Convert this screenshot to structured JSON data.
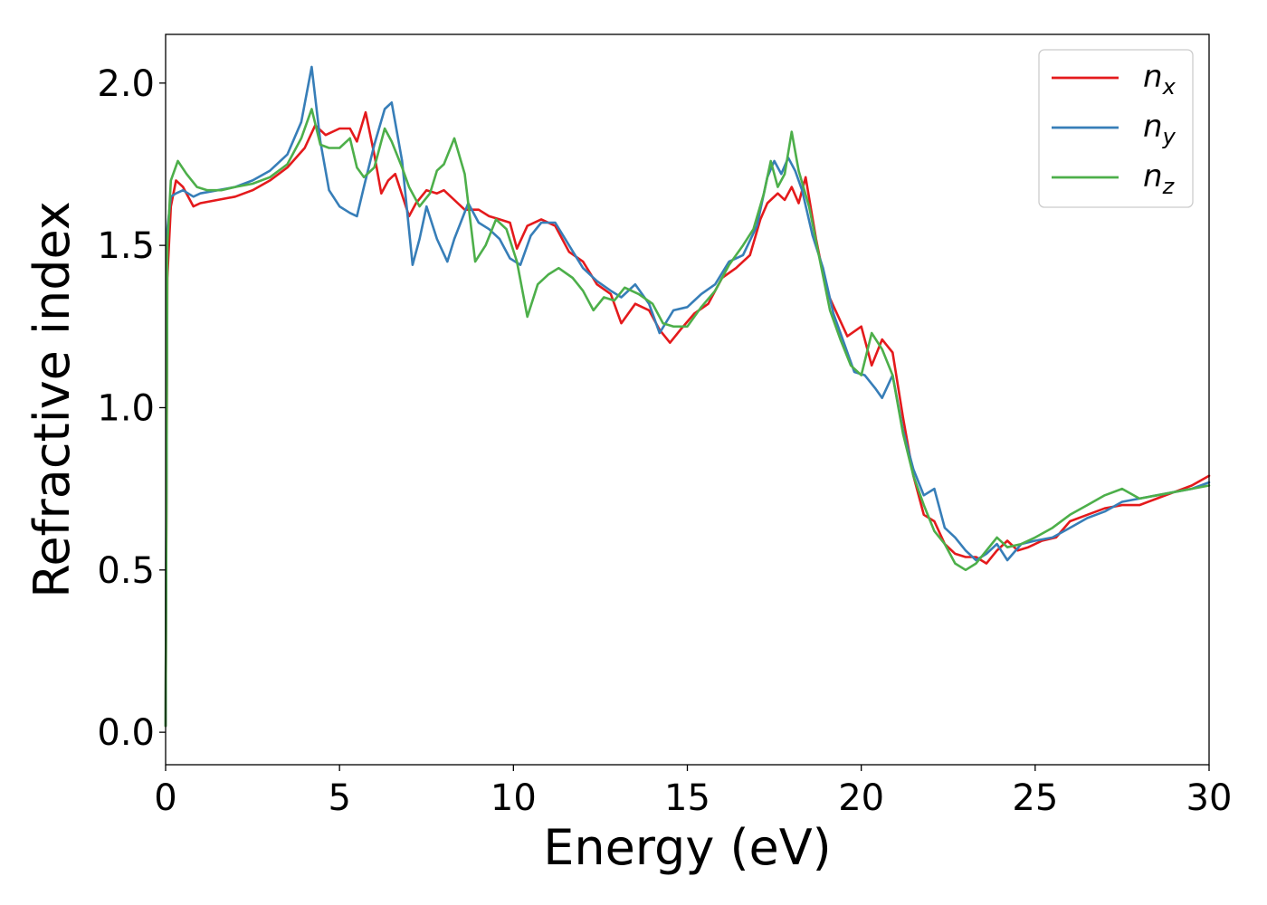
{
  "chart_data": {
    "type": "line",
    "title": "",
    "xlabel": "Energy (eV)",
    "ylabel": "Refractive index",
    "xlim": [
      0,
      30
    ],
    "ylim": [
      -0.1,
      2.15
    ],
    "xticks": [
      0,
      5,
      10,
      15,
      20,
      25,
      30
    ],
    "xtick_labels": [
      "0",
      "5",
      "10",
      "15",
      "20",
      "25",
      "30"
    ],
    "yticks": [
      0.0,
      0.5,
      1.0,
      1.5,
      2.0
    ],
    "ytick_labels": [
      "0.0",
      "0.5",
      "1.0",
      "1.5",
      "2.0"
    ],
    "grid": false,
    "legend_position": "top-right",
    "series": [
      {
        "name": "n",
        "subscript": "x",
        "color": "#e41a1c",
        "x": [
          0,
          0.05,
          0.15,
          0.3,
          0.5,
          0.8,
          1.0,
          1.5,
          2.0,
          2.5,
          3.0,
          3.5,
          4.0,
          4.3,
          4.6,
          5.0,
          5.3,
          5.5,
          5.75,
          6.0,
          6.2,
          6.4,
          6.6,
          7.0,
          7.2,
          7.5,
          7.8,
          8.0,
          8.3,
          8.6,
          9.0,
          9.3,
          9.6,
          9.9,
          10.1,
          10.4,
          10.8,
          11.2,
          11.6,
          12.0,
          12.4,
          12.8,
          13.1,
          13.5,
          13.9,
          14.2,
          14.5,
          14.8,
          15.2,
          15.6,
          16.0,
          16.4,
          16.8,
          17.1,
          17.3,
          17.6,
          17.8,
          18.0,
          18.2,
          18.4,
          18.7,
          19.0,
          19.3,
          19.6,
          20.0,
          20.3,
          20.6,
          20.9,
          21.2,
          21.5,
          21.8,
          22.1,
          22.4,
          22.7,
          23.0,
          23.3,
          23.6,
          23.9,
          24.2,
          24.5,
          24.8,
          25.2,
          25.6,
          26.0,
          26.5,
          27.0,
          27.5,
          28.0,
          28.5,
          29.0,
          29.5,
          30.0
        ],
        "y": [
          0.02,
          1.4,
          1.62,
          1.7,
          1.68,
          1.62,
          1.63,
          1.64,
          1.65,
          1.67,
          1.7,
          1.74,
          1.8,
          1.87,
          1.84,
          1.86,
          1.86,
          1.82,
          1.91,
          1.78,
          1.66,
          1.7,
          1.72,
          1.59,
          1.63,
          1.67,
          1.66,
          1.67,
          1.64,
          1.61,
          1.61,
          1.59,
          1.58,
          1.57,
          1.49,
          1.56,
          1.58,
          1.56,
          1.48,
          1.45,
          1.38,
          1.35,
          1.26,
          1.32,
          1.3,
          1.24,
          1.2,
          1.24,
          1.29,
          1.32,
          1.4,
          1.43,
          1.47,
          1.58,
          1.63,
          1.66,
          1.64,
          1.68,
          1.63,
          1.71,
          1.52,
          1.36,
          1.29,
          1.22,
          1.25,
          1.13,
          1.21,
          1.17,
          0.97,
          0.79,
          0.67,
          0.65,
          0.58,
          0.55,
          0.54,
          0.54,
          0.52,
          0.56,
          0.59,
          0.56,
          0.57,
          0.59,
          0.6,
          0.65,
          0.67,
          0.69,
          0.7,
          0.7,
          0.72,
          0.74,
          0.76,
          0.79
        ]
      },
      {
        "name": "n",
        "subscript": "y",
        "color": "#377eb8",
        "x": [
          0,
          0.05,
          0.15,
          0.3,
          0.5,
          0.8,
          1.0,
          1.5,
          2.0,
          2.5,
          3.0,
          3.5,
          3.9,
          4.2,
          4.45,
          4.7,
          5.0,
          5.3,
          5.5,
          5.7,
          6.0,
          6.3,
          6.5,
          6.8,
          7.1,
          7.3,
          7.5,
          7.8,
          8.1,
          8.3,
          8.7,
          9.0,
          9.3,
          9.6,
          9.9,
          10.2,
          10.5,
          10.8,
          11.2,
          11.6,
          12.0,
          12.4,
          12.8,
          13.1,
          13.5,
          13.9,
          14.2,
          14.6,
          15.0,
          15.4,
          15.8,
          16.2,
          16.6,
          17.0,
          17.3,
          17.5,
          17.7,
          17.9,
          18.1,
          18.3,
          18.6,
          18.9,
          19.2,
          19.5,
          19.8,
          20.1,
          20.4,
          20.6,
          20.9,
          21.2,
          21.5,
          21.8,
          22.1,
          22.4,
          22.7,
          23.0,
          23.3,
          23.6,
          23.9,
          24.2,
          24.6,
          25.0,
          25.5,
          26.0,
          26.5,
          27.0,
          27.5,
          28.0,
          28.5,
          29.0,
          29.5,
          30.0
        ],
        "y": [
          0.02,
          1.55,
          1.65,
          1.66,
          1.67,
          1.65,
          1.66,
          1.67,
          1.68,
          1.7,
          1.73,
          1.78,
          1.88,
          2.05,
          1.82,
          1.67,
          1.62,
          1.6,
          1.59,
          1.68,
          1.81,
          1.92,
          1.94,
          1.76,
          1.44,
          1.52,
          1.62,
          1.52,
          1.45,
          1.52,
          1.63,
          1.57,
          1.55,
          1.52,
          1.46,
          1.44,
          1.53,
          1.57,
          1.57,
          1.5,
          1.43,
          1.39,
          1.36,
          1.34,
          1.38,
          1.32,
          1.23,
          1.3,
          1.31,
          1.35,
          1.38,
          1.45,
          1.47,
          1.56,
          1.71,
          1.76,
          1.72,
          1.77,
          1.73,
          1.67,
          1.53,
          1.43,
          1.29,
          1.2,
          1.11,
          1.1,
          1.06,
          1.03,
          1.1,
          0.93,
          0.81,
          0.73,
          0.75,
          0.63,
          0.6,
          0.56,
          0.53,
          0.55,
          0.58,
          0.53,
          0.58,
          0.59,
          0.6,
          0.63,
          0.66,
          0.68,
          0.71,
          0.72,
          0.73,
          0.74,
          0.75,
          0.77
        ]
      },
      {
        "name": "n",
        "subscript": "z",
        "color": "#4daf4a",
        "x": [
          0,
          0.05,
          0.15,
          0.35,
          0.6,
          0.9,
          1.2,
          1.6,
          2.0,
          2.5,
          3.0,
          3.5,
          3.9,
          4.2,
          4.45,
          4.7,
          5.0,
          5.3,
          5.5,
          5.7,
          6.0,
          6.3,
          6.5,
          6.8,
          7.0,
          7.3,
          7.6,
          7.8,
          8.0,
          8.3,
          8.6,
          8.9,
          9.2,
          9.5,
          9.8,
          10.1,
          10.4,
          10.7,
          11.0,
          11.3,
          11.7,
          12.0,
          12.3,
          12.6,
          12.9,
          13.2,
          13.6,
          14.0,
          14.3,
          14.6,
          15.0,
          15.4,
          15.8,
          16.2,
          16.6,
          16.9,
          17.2,
          17.4,
          17.6,
          17.8,
          18.0,
          18.2,
          18.5,
          18.8,
          19.1,
          19.4,
          19.7,
          20.0,
          20.3,
          20.6,
          20.9,
          21.2,
          21.5,
          21.8,
          22.1,
          22.4,
          22.7,
          23.0,
          23.3,
          23.6,
          23.9,
          24.2,
          24.6,
          25.0,
          25.5,
          26.0,
          26.5,
          27.0,
          27.5,
          28.0,
          28.5,
          29.0,
          29.5,
          30.0
        ],
        "y": [
          0.02,
          1.5,
          1.7,
          1.76,
          1.72,
          1.68,
          1.67,
          1.67,
          1.68,
          1.69,
          1.71,
          1.75,
          1.83,
          1.92,
          1.81,
          1.8,
          1.8,
          1.83,
          1.74,
          1.71,
          1.74,
          1.86,
          1.82,
          1.74,
          1.68,
          1.62,
          1.66,
          1.73,
          1.75,
          1.83,
          1.72,
          1.45,
          1.5,
          1.58,
          1.55,
          1.45,
          1.28,
          1.38,
          1.41,
          1.43,
          1.4,
          1.36,
          1.3,
          1.34,
          1.33,
          1.37,
          1.35,
          1.32,
          1.26,
          1.25,
          1.25,
          1.31,
          1.36,
          1.44,
          1.5,
          1.55,
          1.66,
          1.76,
          1.68,
          1.72,
          1.85,
          1.73,
          1.62,
          1.46,
          1.3,
          1.21,
          1.13,
          1.1,
          1.23,
          1.18,
          1.1,
          0.92,
          0.79,
          0.7,
          0.62,
          0.58,
          0.52,
          0.5,
          0.52,
          0.56,
          0.6,
          0.57,
          0.58,
          0.6,
          0.63,
          0.67,
          0.7,
          0.73,
          0.75,
          0.72,
          0.73,
          0.74,
          0.75,
          0.76
        ]
      }
    ]
  }
}
